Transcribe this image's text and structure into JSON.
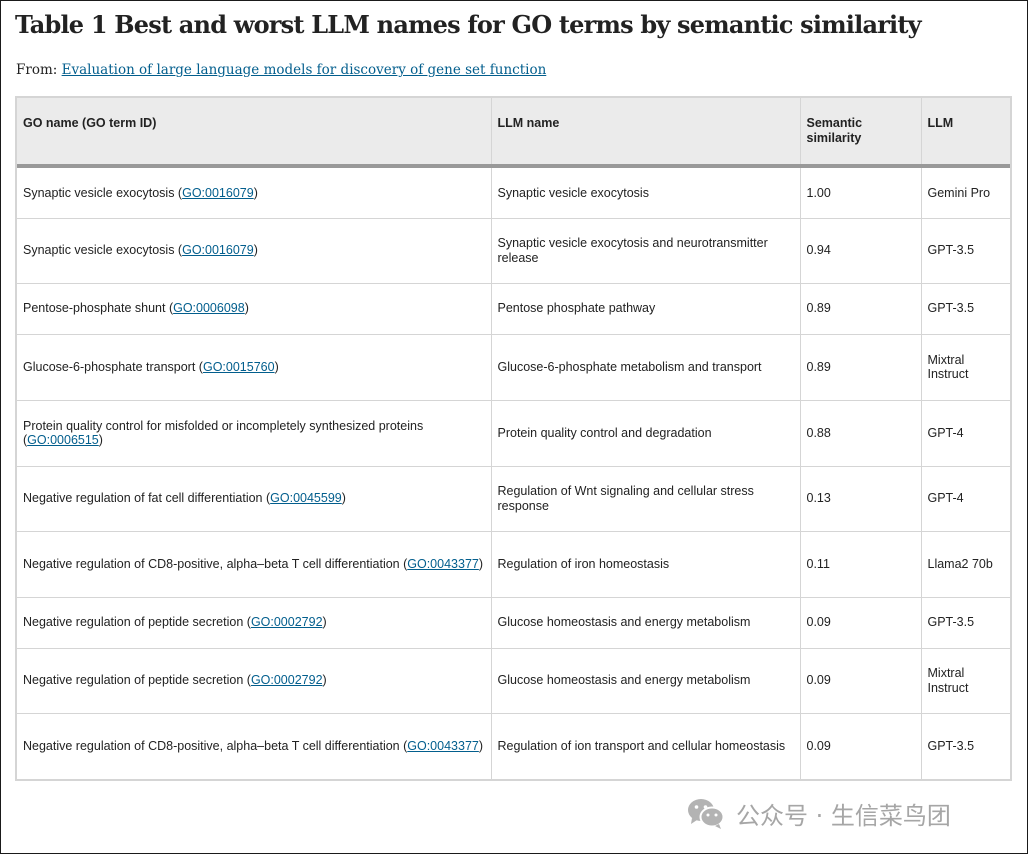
{
  "page": {
    "title": "Table 1 Best and worst LLM names for GO terms by semantic similarity",
    "from_label": "From:",
    "source_link": "Evaluation of large language models for discovery of gene set function"
  },
  "table": {
    "headers": {
      "go_name": "GO name (GO term ID)",
      "llm_name": "LLM name",
      "similarity_line1": "Semantic",
      "similarity_line2": "similarity",
      "llm": "LLM"
    },
    "rows": [
      {
        "go_name": "Synaptic vesicle exocytosis",
        "go_id": "GO:0016079",
        "llm_name": "Synaptic vesicle exocytosis",
        "similarity": "1.00",
        "llm": "Gemini Pro"
      },
      {
        "go_name": "Synaptic vesicle exocytosis",
        "go_id": "GO:0016079",
        "llm_name": "Synaptic vesicle exocytosis and neurotransmitter release",
        "similarity": "0.94",
        "llm": "GPT-3.5"
      },
      {
        "go_name": "Pentose-phosphate shunt",
        "go_id": "GO:0006098",
        "llm_name": "Pentose phosphate pathway",
        "similarity": "0.89",
        "llm": "GPT-3.5"
      },
      {
        "go_name": "Glucose-6-phosphate transport",
        "go_id": "GO:0015760",
        "llm_name": "Glucose-6-phosphate metabolism and transport",
        "similarity": "0.89",
        "llm": "Mixtral Instruct"
      },
      {
        "go_name": "Protein quality control for misfolded or incompletely synthesized proteins",
        "go_id": "GO:0006515",
        "llm_name": "Protein quality control and degradation",
        "similarity": "0.88",
        "llm": "GPT-4"
      },
      {
        "go_name": "Negative regulation of fat cell differentiation",
        "go_id": "GO:0045599",
        "llm_name": "Regulation of Wnt signaling and cellular stress response",
        "similarity": "0.13",
        "llm": "GPT-4"
      },
      {
        "go_name": "Negative regulation of CD8-positive, alpha–beta T cell differentiation",
        "go_id": "GO:0043377",
        "llm_name": "Regulation of iron homeostasis",
        "similarity": "0.11",
        "llm": "Llama2 70b"
      },
      {
        "go_name": "Negative regulation of peptide secretion",
        "go_id": "GO:0002792",
        "llm_name": "Glucose homeostasis and energy metabolism",
        "similarity": "0.09",
        "llm": "GPT-3.5"
      },
      {
        "go_name": "Negative regulation of peptide secretion",
        "go_id": "GO:0002792",
        "llm_name": "Glucose homeostasis and energy metabolism",
        "similarity": "0.09",
        "llm": "Mixtral Instruct"
      },
      {
        "go_name": "Negative regulation of CD8-positive, alpha–beta T cell differentiation",
        "go_id": "GO:0043377",
        "llm_name": "Regulation of ion transport and cellular homeostasis",
        "similarity": "0.09",
        "llm": "GPT-3.5"
      }
    ]
  },
  "watermark": {
    "icon": "wechat-icon",
    "text": "公众号 · 生信菜鸟团"
  },
  "colors": {
    "link": "#025e8d",
    "header_bg": "#ebebeb",
    "header_rule": "#999999",
    "watermark": "#a6a6a6"
  }
}
